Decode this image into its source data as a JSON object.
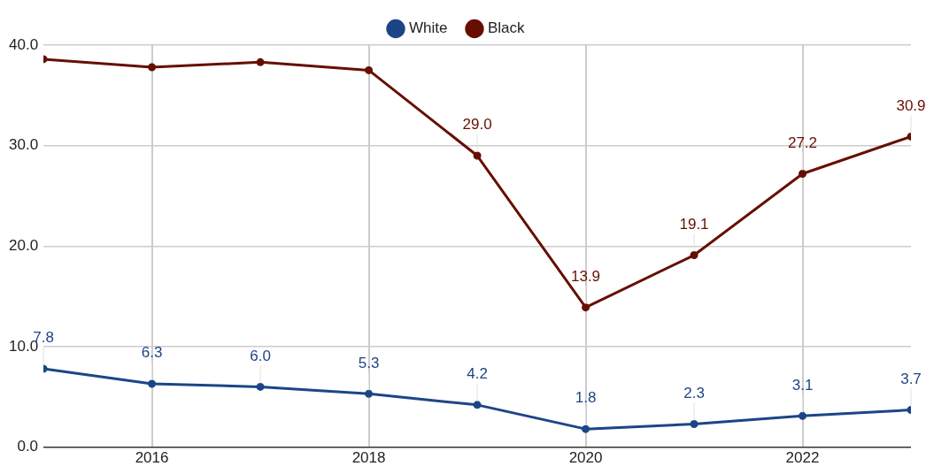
{
  "chart_data": {
    "type": "line",
    "x": [
      2015,
      2016,
      2017,
      2018,
      2019,
      2020,
      2021,
      2022,
      2023
    ],
    "xlim": [
      2015,
      2023
    ],
    "xticks": [
      2016,
      2018,
      2020,
      2022
    ],
    "ylim": [
      0,
      40
    ],
    "yticks": [
      {
        "value": 0,
        "label": "0.0"
      },
      {
        "value": 10,
        "label": "10.0"
      },
      {
        "value": 20,
        "label": "20.0"
      },
      {
        "value": 30,
        "label": "30.0"
      },
      {
        "value": 40,
        "label": "40.0"
      }
    ],
    "grid": true,
    "legend": "top",
    "marker": "circle",
    "line_style": "solid",
    "series": [
      {
        "name": "White",
        "color": "#1c4587",
        "values": [
          7.8,
          6.3,
          6.0,
          5.3,
          4.2,
          1.8,
          2.3,
          3.1,
          3.7
        ],
        "value_labels": [
          "7.8",
          "6.3",
          "6.0",
          "5.3",
          "4.2",
          "1.8",
          "2.3",
          "3.1",
          "3.7"
        ]
      },
      {
        "name": "Black",
        "color": "#660f00",
        "values": [
          38.6,
          37.8,
          38.3,
          37.5,
          29.0,
          13.9,
          19.1,
          27.2,
          30.9
        ],
        "value_labels": [
          null,
          null,
          null,
          null,
          "29.0",
          "13.9",
          "19.1",
          "27.2",
          "30.9"
        ]
      }
    ]
  }
}
